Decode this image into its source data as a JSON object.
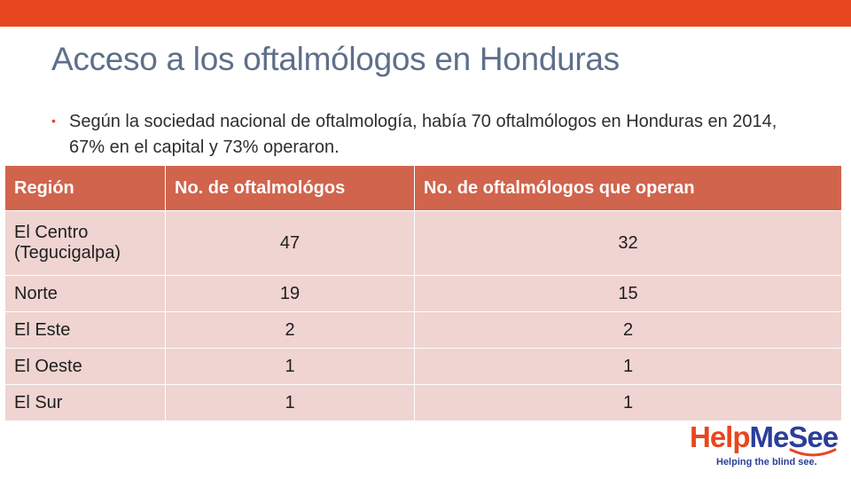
{
  "slide": {
    "title": "Acceso a los oftalmólogos en Honduras",
    "bullet": "Según la sociedad nacional de oftalmología, había 70 oftalmólogos en Honduras en 2014, 67% en el capital y 73% operaron."
  },
  "table": {
    "headers": [
      "Región",
      "No. de oftalmológos",
      "No. de oftalmólogos que operan"
    ],
    "rows": [
      [
        "El Centro (Tegucigalpa)",
        "47",
        "32"
      ],
      [
        "Norte",
        "19",
        "15"
      ],
      [
        "El Este",
        "2",
        "2"
      ],
      [
        "El Oeste",
        "1",
        "1"
      ],
      [
        "El Sur",
        "1",
        "1"
      ]
    ]
  },
  "logo": {
    "word_help": "Help",
    "word_mesee": "MeSee",
    "tagline": "Helping the blind see."
  },
  "colors": {
    "accent": "#e8461f",
    "title": "#5e6f8a",
    "table_header": "#d0644d",
    "table_row": "#efd4d1",
    "brand_blue": "#2b3e99"
  }
}
